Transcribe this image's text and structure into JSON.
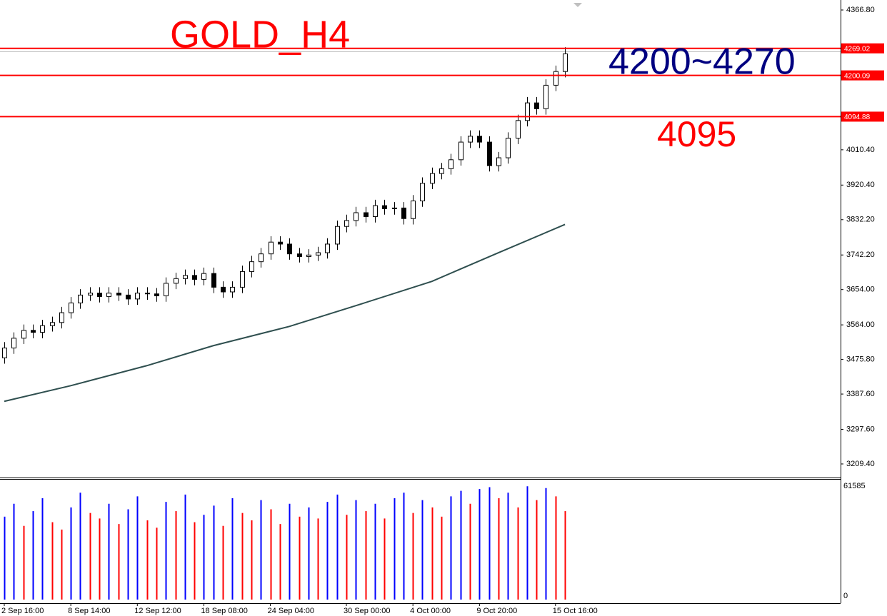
{
  "chart_data": {
    "type": "candlestick",
    "title": "GOLD_H4",
    "open": [
      3480,
      3505,
      3530,
      3550,
      3545,
      3562,
      3570,
      3595,
      3620,
      3640,
      3645,
      3636,
      3645,
      3640,
      3630,
      3645,
      3643,
      3638,
      3670,
      3682,
      3690,
      3680,
      3695,
      3660,
      3648,
      3660,
      3700,
      3725,
      3745,
      3775,
      3770,
      3745,
      3738,
      3742,
      3748,
      3770,
      3815,
      3830,
      3850,
      3840,
      3868,
      3860,
      3862,
      3835,
      3880,
      3925,
      3950,
      3962,
      3985,
      4030,
      4045,
      4030,
      3970,
      3990,
      4040,
      4085,
      4130,
      4115,
      4175,
      4210
    ],
    "high": [
      3520,
      3545,
      3565,
      3565,
      3577,
      3585,
      3610,
      3635,
      3655,
      3660,
      3660,
      3660,
      3660,
      3655,
      3660,
      3660,
      3658,
      3685,
      3697,
      3705,
      3705,
      3710,
      3710,
      3675,
      3675,
      3715,
      3740,
      3760,
      3790,
      3790,
      3785,
      3760,
      3757,
      3763,
      3785,
      3830,
      3845,
      3865,
      3865,
      3883,
      3883,
      3877,
      3877,
      3895,
      3940,
      3965,
      3977,
      4000,
      4045,
      4060,
      4060,
      4045,
      4005,
      4055,
      4100,
      4145,
      4145,
      4190,
      4225,
      4272
    ],
    "low": [
      3465,
      3490,
      3515,
      3530,
      3530,
      3547,
      3555,
      3580,
      3605,
      3625,
      3621,
      3621,
      3625,
      3615,
      3615,
      3628,
      3623,
      3623,
      3655,
      3667,
      3665,
      3665,
      3645,
      3633,
      3633,
      3645,
      3685,
      3710,
      3730,
      3755,
      3730,
      3723,
      3723,
      3727,
      3733,
      3755,
      3800,
      3815,
      3825,
      3825,
      3845,
      3845,
      3820,
      3820,
      3865,
      3910,
      3935,
      3947,
      3970,
      4015,
      4015,
      3955,
      3955,
      3975,
      4025,
      4070,
      4100,
      4100,
      4160,
      4195
    ],
    "close": [
      3505,
      3530,
      3550,
      3545,
      3562,
      3570,
      3595,
      3620,
      3640,
      3645,
      3636,
      3645,
      3640,
      3630,
      3645,
      3643,
      3638,
      3670,
      3682,
      3690,
      3680,
      3695,
      3660,
      3648,
      3660,
      3700,
      3725,
      3745,
      3775,
      3770,
      3745,
      3738,
      3742,
      3748,
      3770,
      3815,
      3830,
      3850,
      3840,
      3868,
      3860,
      3862,
      3835,
      3880,
      3925,
      3950,
      3962,
      3985,
      4030,
      4045,
      4030,
      3970,
      3990,
      4040,
      4085,
      4130,
      4115,
      4175,
      4210,
      4255
    ],
    "up_color": "#ffffff",
    "down_color": "#000000",
    "moving_average": {
      "color": "#2f4f4f",
      "index": [
        0,
        7,
        15,
        22,
        30,
        37,
        45,
        52,
        59
      ],
      "values": [
        3369,
        3409,
        3460,
        3511,
        3560,
        3613,
        3675,
        3748,
        3820
      ]
    },
    "ylim": [
      3176.6,
      4392.3
    ],
    "yticks": [
      {
        "value": 4366.8,
        "label": "4366.80"
      },
      {
        "value": 4010.4,
        "label": "4010.40"
      },
      {
        "value": 3920.4,
        "label": "3920.40"
      },
      {
        "value": 3832.2,
        "label": "3832.20"
      },
      {
        "value": 3742.2,
        "label": "3742.20"
      },
      {
        "value": 3654.0,
        "label": "3654.00"
      },
      {
        "value": 3564.0,
        "label": "3564.00"
      },
      {
        "value": 3475.8,
        "label": "3475.80"
      },
      {
        "value": 3387.6,
        "label": "3387.60"
      },
      {
        "value": 3297.6,
        "label": "3297.60"
      },
      {
        "value": 3209.4,
        "label": "3209.40"
      }
    ],
    "xlim": [
      -0.45,
      88.0
    ],
    "xticks": [
      {
        "value": 0,
        "label": "2 Sep 16:00"
      },
      {
        "value": 7,
        "label": "8 Sep 14:00"
      },
      {
        "value": 14,
        "label": "12 Sep 12:00"
      },
      {
        "value": 21,
        "label": "18 Sep 08:00"
      },
      {
        "value": 28,
        "label": "24 Sep 04:00"
      },
      {
        "value": 36,
        "label": "30 Sep 00:00"
      },
      {
        "value": 43,
        "label": "4 Oct 00:00"
      },
      {
        "value": 50,
        "label": "9 Oct 20:00"
      },
      {
        "value": 58,
        "label": "15 Oct 16:00"
      }
    ],
    "levels": [
      {
        "value": 4269.02,
        "label": "4269.02"
      },
      {
        "value": 4200.09,
        "label": "4200.09"
      },
      {
        "value": 4094.88,
        "label": "4094.88"
      }
    ],
    "level_color": "#ff0000",
    "annotations": [
      {
        "text": "4200~4270",
        "color": "#000080"
      },
      {
        "text": "4095",
        "color": "#ff0000"
      }
    ],
    "volume": {
      "values": [
        45000,
        52000,
        40000,
        48000,
        55000,
        42000,
        38000,
        50000,
        58000,
        47000,
        44000,
        52000,
        41000,
        49000,
        56000,
        43000,
        39000,
        53000,
        48000,
        57000,
        42000,
        46000,
        51000,
        40000,
        55000,
        47000,
        43000,
        54000,
        49000,
        41000,
        52000,
        45000,
        50000,
        44000,
        53000,
        57000,
        46000,
        54000,
        48000,
        52000,
        44000,
        55000,
        58000,
        47000,
        54000,
        50000,
        45000,
        56000,
        59000,
        52000,
        60000,
        61000,
        55000,
        58000,
        50000,
        61500,
        54000,
        60500,
        56000,
        48000
      ],
      "up_color": "#0000ff",
      "down_color": "#ff0000",
      "ylim": [
        0,
        61585
      ],
      "yticks": [
        61585,
        0
      ]
    }
  }
}
